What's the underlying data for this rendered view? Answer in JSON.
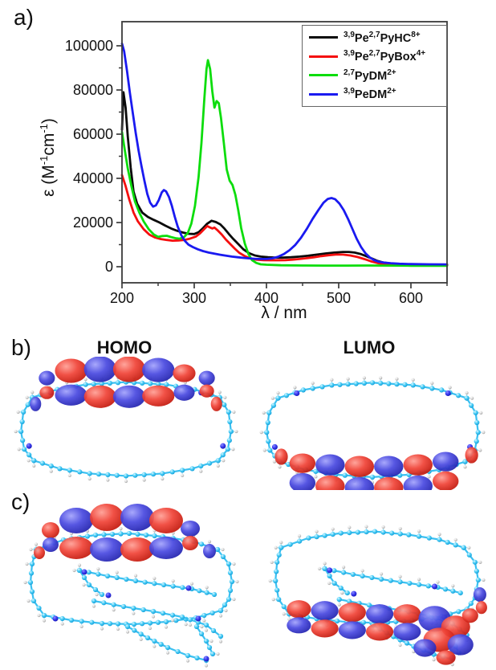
{
  "figure": {
    "panel_a": "a)",
    "panel_b": "b)",
    "panel_c": "c)",
    "orbitals": {
      "homo": "HOMO",
      "lumo": "LUMO"
    }
  },
  "chart_data": {
    "type": "line",
    "title": "",
    "xlabel": "λ / nm",
    "ylabel": "ε (M^{-1}cm^{-1})",
    "xlim": [
      200,
      650
    ],
    "ylim": [
      0,
      100000
    ],
    "x_ticks": [
      200,
      300,
      400,
      500,
      600
    ],
    "x_minor_ticks": [
      250,
      350,
      450,
      550,
      650
    ],
    "y_ticks": [
      0,
      20000,
      40000,
      60000,
      80000,
      100000
    ],
    "y_minor_ticks": [
      10000,
      30000,
      50000,
      70000,
      90000
    ],
    "grid": false,
    "legend_position": "top-right",
    "frame": "box",
    "series": [
      {
        "name": "^{3,9}Pe^{2,7}PyHC^{8+}",
        "color": "#0a0a0a",
        "points": [
          [
            200,
            62000
          ],
          [
            202,
            79000
          ],
          [
            205,
            72000
          ],
          [
            208,
            59000
          ],
          [
            212,
            45000
          ],
          [
            216,
            34000
          ],
          [
            221,
            28500
          ],
          [
            228,
            24500
          ],
          [
            236,
            22500
          ],
          [
            244,
            21200
          ],
          [
            252,
            20000
          ],
          [
            260,
            18600
          ],
          [
            268,
            17300
          ],
          [
            276,
            16300
          ],
          [
            284,
            15500
          ],
          [
            292,
            14900
          ],
          [
            300,
            14800
          ],
          [
            306,
            15600
          ],
          [
            312,
            17400
          ],
          [
            318,
            19500
          ],
          [
            324,
            20800
          ],
          [
            330,
            20200
          ],
          [
            336,
            19200
          ],
          [
            342,
            17200
          ],
          [
            348,
            14800
          ],
          [
            354,
            12600
          ],
          [
            360,
            10600
          ],
          [
            368,
            7900
          ],
          [
            376,
            6100
          ],
          [
            384,
            5100
          ],
          [
            392,
            4600
          ],
          [
            402,
            4300
          ],
          [
            412,
            4100
          ],
          [
            422,
            4100
          ],
          [
            434,
            4300
          ],
          [
            446,
            4600
          ],
          [
            458,
            5000
          ],
          [
            470,
            5500
          ],
          [
            482,
            6000
          ],
          [
            494,
            6400
          ],
          [
            506,
            6700
          ],
          [
            514,
            6700
          ],
          [
            522,
            6400
          ],
          [
            530,
            5800
          ],
          [
            538,
            4800
          ],
          [
            546,
            3700
          ],
          [
            554,
            2600
          ],
          [
            562,
            1900
          ],
          [
            572,
            1400
          ],
          [
            584,
            1100
          ],
          [
            600,
            950
          ],
          [
            625,
            850
          ],
          [
            650,
            800
          ]
        ]
      },
      {
        "name": "^{3,9}Pe^{2,7}PyBox^{4+}",
        "color": "#f50f0f",
        "points": [
          [
            200,
            41500
          ],
          [
            205,
            36500
          ],
          [
            210,
            30500
          ],
          [
            216,
            24500
          ],
          [
            222,
            20500
          ],
          [
            230,
            17000
          ],
          [
            238,
            14500
          ],
          [
            246,
            13200
          ],
          [
            254,
            12500
          ],
          [
            262,
            12100
          ],
          [
            270,
            11800
          ],
          [
            278,
            11900
          ],
          [
            286,
            12100
          ],
          [
            294,
            12700
          ],
          [
            302,
            13600
          ],
          [
            308,
            15100
          ],
          [
            314,
            17100
          ],
          [
            318,
            18400
          ],
          [
            321,
            17900
          ],
          [
            325,
            17300
          ],
          [
            328,
            17700
          ],
          [
            332,
            16600
          ],
          [
            338,
            14600
          ],
          [
            344,
            12200
          ],
          [
            350,
            10200
          ],
          [
            356,
            8200
          ],
          [
            362,
            6400
          ],
          [
            370,
            4800
          ],
          [
            378,
            3700
          ],
          [
            386,
            3200
          ],
          [
            396,
            3000
          ],
          [
            406,
            2900
          ],
          [
            416,
            2900
          ],
          [
            426,
            3000
          ],
          [
            436,
            3200
          ],
          [
            446,
            3500
          ],
          [
            456,
            3900
          ],
          [
            466,
            4300
          ],
          [
            476,
            4800
          ],
          [
            486,
            5200
          ],
          [
            496,
            5500
          ],
          [
            506,
            5500
          ],
          [
            516,
            5100
          ],
          [
            526,
            4400
          ],
          [
            536,
            3400
          ],
          [
            546,
            2300
          ],
          [
            556,
            1500
          ],
          [
            566,
            1100
          ],
          [
            580,
            850
          ],
          [
            600,
            750
          ],
          [
            650,
            650
          ]
        ]
      },
      {
        "name": "^{2,7}PyDM^{2+}",
        "color": "#0ddd0d",
        "points": [
          [
            200,
            61000
          ],
          [
            204,
            52500
          ],
          [
            208,
            44500
          ],
          [
            213,
            36500
          ],
          [
            218,
            29500
          ],
          [
            224,
            24500
          ],
          [
            230,
            20500
          ],
          [
            237,
            17000
          ],
          [
            244,
            14600
          ],
          [
            250,
            13500
          ],
          [
            256,
            13900
          ],
          [
            262,
            14000
          ],
          [
            268,
            13400
          ],
          [
            274,
            12900
          ],
          [
            280,
            12700
          ],
          [
            286,
            13400
          ],
          [
            291,
            15200
          ],
          [
            296,
            19500
          ],
          [
            301,
            27500
          ],
          [
            306,
            40500
          ],
          [
            310,
            56000
          ],
          [
            314,
            76000
          ],
          [
            317,
            89500
          ],
          [
            319,
            93500
          ],
          [
            322,
            89500
          ],
          [
            325,
            79500
          ],
          [
            328,
            72000
          ],
          [
            331,
            75000
          ],
          [
            334,
            74000
          ],
          [
            337,
            67500
          ],
          [
            341,
            56000
          ],
          [
            345,
            44000
          ],
          [
            349,
            39000
          ],
          [
            353,
            37000
          ],
          [
            357,
            32500
          ],
          [
            361,
            25500
          ],
          [
            365,
            17500
          ],
          [
            370,
            10500
          ],
          [
            375,
            5800
          ],
          [
            380,
            3000
          ],
          [
            386,
            1700
          ],
          [
            392,
            1100
          ],
          [
            400,
            900
          ],
          [
            420,
            650
          ],
          [
            450,
            550
          ],
          [
            480,
            500
          ],
          [
            510,
            500
          ],
          [
            540,
            550
          ],
          [
            570,
            500
          ],
          [
            600,
            450
          ],
          [
            650,
            450
          ]
        ]
      },
      {
        "name": "^{3,9}PeDM^{2+}",
        "color": "#1a1af0",
        "points": [
          [
            200,
            101000
          ],
          [
            203,
            97500
          ],
          [
            207,
            88500
          ],
          [
            211,
            78500
          ],
          [
            215,
            69500
          ],
          [
            219,
            60500
          ],
          [
            223,
            52500
          ],
          [
            227,
            45500
          ],
          [
            231,
            39000
          ],
          [
            235,
            33000
          ],
          [
            239,
            29000
          ],
          [
            243,
            27200
          ],
          [
            247,
            27800
          ],
          [
            251,
            30200
          ],
          [
            255,
            33600
          ],
          [
            258,
            34700
          ],
          [
            261,
            34100
          ],
          [
            265,
            31600
          ],
          [
            269,
            27600
          ],
          [
            273,
            22700
          ],
          [
            277,
            18300
          ],
          [
            282,
            14300
          ],
          [
            287,
            11700
          ],
          [
            292,
            10000
          ],
          [
            298,
            8900
          ],
          [
            305,
            7900
          ],
          [
            312,
            7100
          ],
          [
            320,
            6400
          ],
          [
            328,
            5900
          ],
          [
            336,
            5400
          ],
          [
            344,
            5000
          ],
          [
            352,
            4600
          ],
          [
            360,
            4300
          ],
          [
            368,
            4000
          ],
          [
            376,
            3800
          ],
          [
            384,
            3600
          ],
          [
            392,
            3500
          ],
          [
            400,
            3500
          ],
          [
            408,
            3800
          ],
          [
            416,
            4500
          ],
          [
            424,
            5700
          ],
          [
            432,
            7500
          ],
          [
            440,
            9900
          ],
          [
            448,
            13200
          ],
          [
            456,
            17200
          ],
          [
            464,
            21700
          ],
          [
            472,
            25700
          ],
          [
            479,
            29000
          ],
          [
            485,
            30700
          ],
          [
            490,
            31100
          ],
          [
            495,
            30600
          ],
          [
            501,
            28600
          ],
          [
            507,
            25600
          ],
          [
            513,
            21600
          ],
          [
            519,
            17100
          ],
          [
            525,
            12600
          ],
          [
            531,
            8900
          ],
          [
            537,
            6100
          ],
          [
            543,
            4200
          ],
          [
            549,
            3000
          ],
          [
            555,
            2300
          ],
          [
            562,
            1900
          ],
          [
            572,
            1600
          ],
          [
            584,
            1350
          ],
          [
            600,
            1200
          ],
          [
            625,
            1100
          ],
          [
            650,
            1050
          ]
        ]
      }
    ]
  },
  "molecule_colors": {
    "carbon": "#2fbdf0",
    "nitrogen": "#2b2bd6",
    "hydrogen": "#c4c4c4",
    "orbital_red": "#e5362b",
    "orbital_blue": "#3333cc"
  }
}
